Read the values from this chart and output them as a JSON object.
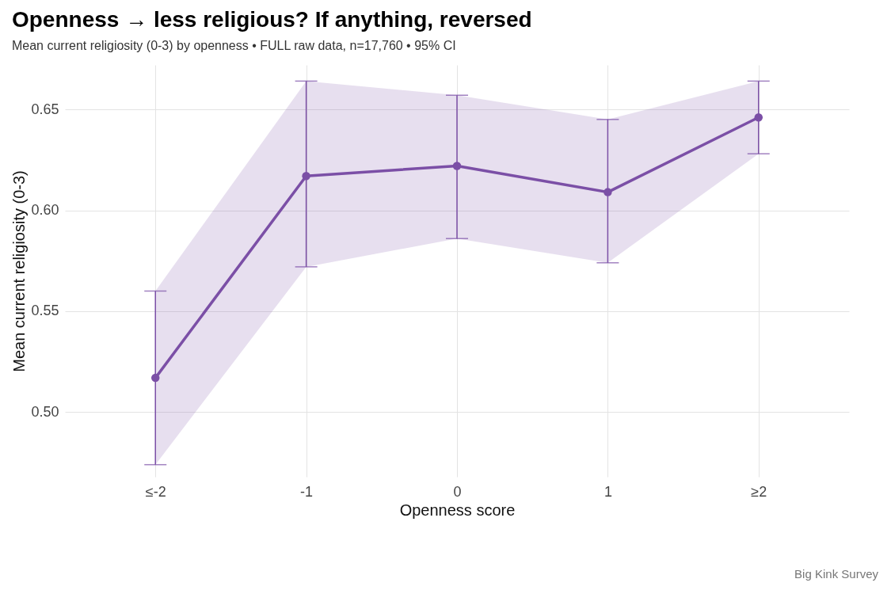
{
  "chart_data": {
    "type": "line",
    "title": "Openness → less religious?  If anything, reversed",
    "subtitle": "Mean current religiosity (0-3) by openness  •  FULL raw data, n=17,760  •  95% CI",
    "xlabel": "Openness score",
    "ylabel": "Mean current religiosity (0-3)",
    "annotations": [
      "Big Kink Survey"
    ],
    "categories": [
      "≤-2",
      "-1",
      "0",
      "1",
      "≥2"
    ],
    "series": [
      {
        "color": "#7b4fa6",
        "values": [
          0.517,
          0.617,
          0.622,
          0.609,
          0.646
        ],
        "errors": [
          [
            0.474,
            0.56
          ],
          [
            0.572,
            0.664
          ],
          [
            0.586,
            0.657
          ],
          [
            0.574,
            0.645
          ],
          [
            0.628,
            0.664
          ]
        ],
        "lower": [
          0.474,
          0.572,
          0.586,
          0.574,
          0.628
        ],
        "upper": [
          0.56,
          0.664,
          0.657,
          0.645,
          0.664
        ]
      }
    ],
    "ylim": [
      0.468,
      0.672
    ],
    "yticks": [
      {
        "value": 0.5,
        "label": "0.50"
      },
      0.55,
      {
        "value": 0.6,
        "label": "0.60"
      },
      0.65
    ],
    "grid": true,
    "marker": "circle",
    "line_style": "solid"
  }
}
